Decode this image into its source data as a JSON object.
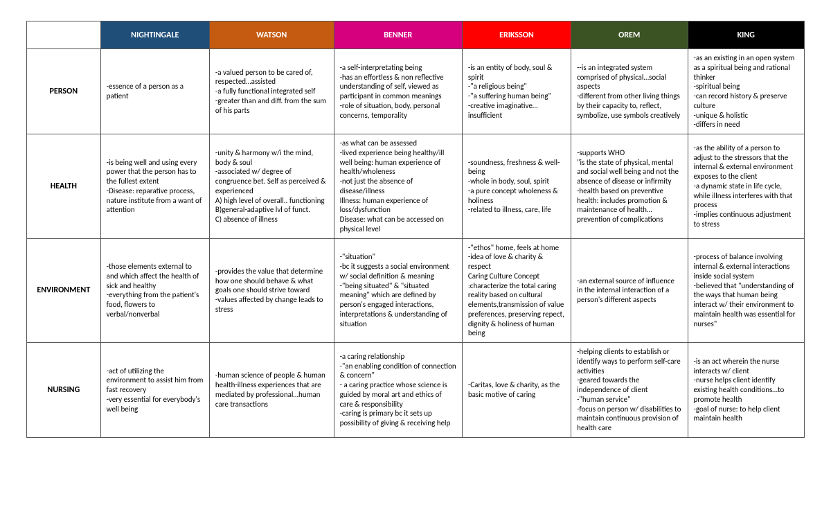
{
  "header_bg": {
    "nightingale": "#1f4e79",
    "watson": "#c55a11",
    "benner": "#d6007e",
    "eriksson": "#ff0000",
    "orem": "#3b5323",
    "king": "#000000"
  },
  "columns": [
    "NIGHTINGALE",
    "WATSON",
    "BENNER",
    "ERIKSSON",
    "OREM",
    "KING"
  ],
  "rows": [
    "PERSON",
    "HEALTH",
    "ENVIRONMENT",
    "NURSING"
  ],
  "cells": {
    "person": {
      "nightingale": [
        "-essence of a person as a patient"
      ],
      "watson": [
        "-a valued person to be cared of, respected…assisted",
        "-a fully functional integrated self",
        "-greater than and diff. from the sum of his parts"
      ],
      "benner": [
        "-a self-interpretating being",
        "-has an effortless & non reflective understanding of self, viewed as participant in common meanings",
        "-role of situation, body, personal concerns, temporality"
      ],
      "eriksson": [
        "-is an entity of body, soul & spirit",
        "-\"a religious being\"",
        "-\"a suffering human being\"",
        "-creative imaginative… insufficient"
      ],
      "orem": [
        "--is an integrated system comprised of physical…social aspects",
        "-different from other living things by their capacity to, reflect, symbolize, use symbols creatively"
      ],
      "king": [
        "-as an existing in an open system as a spiritual being and rational thinker",
        "-spiritual being",
        "-can record history & preserve culture",
        "-unique & holistic",
        "-differs in need"
      ]
    },
    "health": {
      "nightingale": [
        "-is being well and using every power that the person has to the fullest extent",
        "-Disease: reparative process, nature institute from a want of attention"
      ],
      "watson": [
        "-unity & harmony w/i the mind, body & soul",
        "-associated w/ degree of congruence bet. Self as perceived & experienced",
        "A) high level of overall.. functioning",
        "B)general-adaptive lvl of funct.",
        "C) absence of illness"
      ],
      "benner": [
        "-as what can be assessed",
        "-lived experience being healthy/ill",
        "well being: human experience of health/wholeness",
        "-not just the absence of disease/illness",
        "Illness: human experience of loss/dysfunction",
        "Disease: what can be accessed on physical level"
      ],
      "eriksson": [
        "-soundness, freshness & well-being",
        "-whole in body, soul, spirit",
        "-a pure concept wholeness & holiness",
        "-related to illness, care, life"
      ],
      "orem": [
        "-supports WHO",
        "\"is the state of physical, mental and social well being and not the absence of disease or infirmity",
        "-health based on preventive health: includes promotion & maintenance of health… prevention of complications"
      ],
      "king": [
        "-as the ability of a person to adjust to the stressors that the internal & external environment exposes to the client",
        "-a dynamic state in life cycle, while illness interferes with that process",
        "-implies continuous adjustment to stress"
      ]
    },
    "environment": {
      "nightingale": [
        "-those elements external to and which affect the health of sick and healthy",
        "-everything from the patient's food, flowers to verbal/nonverbal"
      ],
      "watson": [
        "-provides the value that determine how one should behave & what goals one should strive toward",
        "-values affected by change leads to stress"
      ],
      "benner": [
        "-\"situation\"",
        "-bc it suggests a social environment w/ social definition & meaning",
        "-\"being situated\" & \"situated meaning\" which are defined by person's engaged interactions, interpretations & understanding of situation"
      ],
      "eriksson": [
        "-\"ethos\" home, feels at home",
        "-idea of love & charity & respect",
        "Caring Culture Concept :characterize the total caring reality based on cultural elements,transmission of value preferences, preserving repect, dignity & holiness of human being"
      ],
      "orem": [
        "-an external source of influence in the internal interaction of a person's different aspects"
      ],
      "king": [
        "-process of balance involving internal & external interactions inside social system",
        "-believed that \"understanding of the ways that human being interact w/ their environment to maintain health was essential for nurses\""
      ]
    },
    "nursing": {
      "nightingale": [
        "-act of utilizing the environment to assist him from fast recovery",
        "-very essential for everybody's well being"
      ],
      "watson": [
        "-human science of people & human health-illness experiences that are mediated by professional…human care transactions"
      ],
      "benner": [
        "-a caring relationship",
        "-\"an enabling condition of connection & concern\"",
        "- a caring practice whose science is guided by moral art and ethics of care & responsibility",
        "-caring is primary bc it sets up possibility of giving & receiving help"
      ],
      "eriksson": [
        "-Caritas, love & charity, as the basic motive of caring"
      ],
      "orem": [
        "-helping clients to establish or identify ways to perform self-care activities",
        "-geared towards the independence of client",
        "-\"human service\"",
        "-focus on person w/ disabilities to maintain continuous provision of health care"
      ],
      "king": [
        "-is an act wherein the nurse interacts w/ client",
        "-nurse helps client identify existing health conditions…to promote health",
        "-goal of nurse: to help client maintain health"
      ]
    }
  }
}
